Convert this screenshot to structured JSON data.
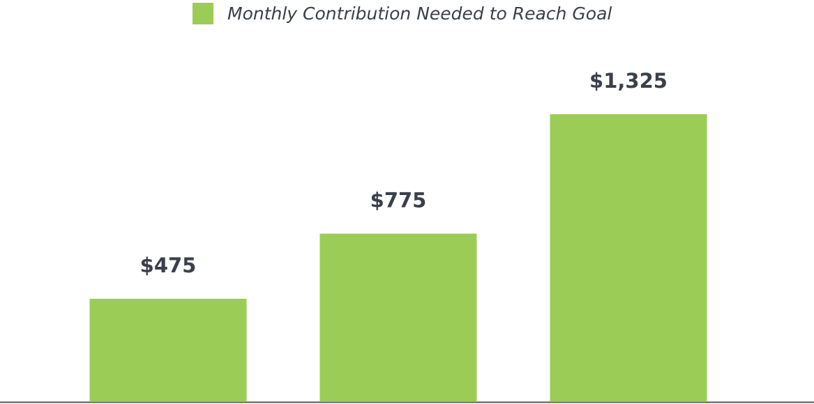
{
  "chart_data": {
    "type": "bar",
    "categories": [
      null,
      null,
      null
    ],
    "series": [
      {
        "name": "Monthly Contribution Needed to Reach Goal",
        "color": "#9bcc55",
        "values": [
          475,
          775,
          1325
        ],
        "value_labels": [
          "$475",
          "$775",
          "$1,325"
        ]
      }
    ],
    "legend": "top"
  }
}
